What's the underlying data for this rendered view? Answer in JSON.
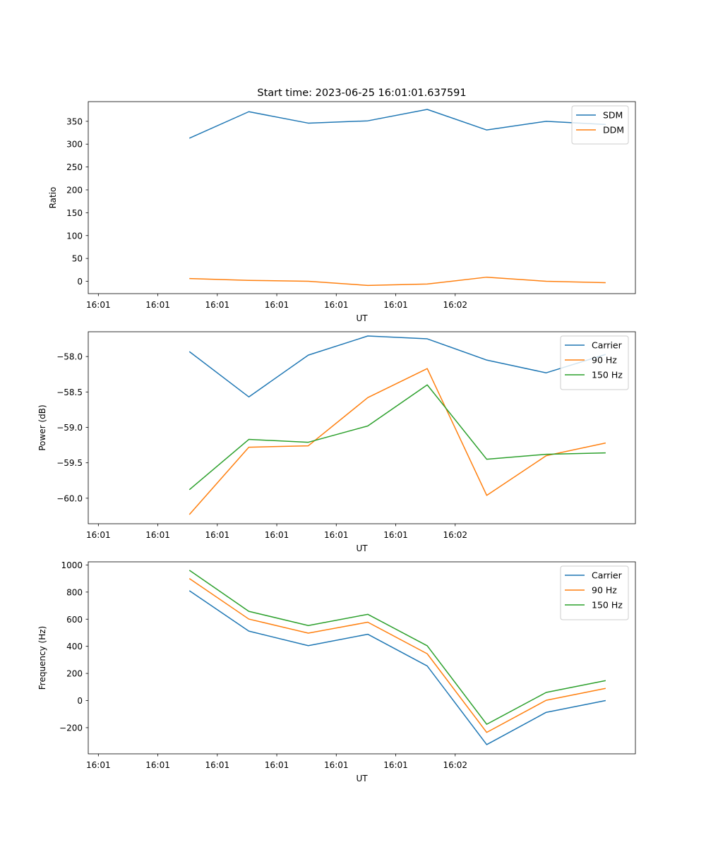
{
  "figure": {
    "title": "Start time: 2023-06-25 16:01:01.637591"
  },
  "chart_data": [
    {
      "type": "line",
      "title": "Start time: 2023-06-25 16:01:01.637591",
      "xlabel": "UT",
      "ylabel": "Ratio",
      "x_tick_labels": [
        "16:01",
        "16:01",
        "16:01",
        "16:01",
        "16:01",
        "16:01",
        "16:02"
      ],
      "xlim": [
        -0.8,
        8.4
      ],
      "x": [
        0.9,
        1.9,
        2.9,
        3.9,
        4.9,
        5.9,
        6.9,
        7.9
      ],
      "y_ticks": [
        0,
        50,
        100,
        150,
        200,
        250,
        300,
        350
      ],
      "ylim": [
        -27,
        393
      ],
      "legend_position": "top-right",
      "grid": false,
      "series": [
        {
          "name": "SDM",
          "color": "#1f77b4",
          "values": [
            313,
            371,
            346,
            351,
            376,
            331,
            350,
            343
          ]
        },
        {
          "name": "DDM",
          "color": "#ff7f0e",
          "values": [
            6,
            2,
            0,
            -9,
            -6,
            9,
            0,
            -3
          ]
        }
      ]
    },
    {
      "type": "line",
      "title": "",
      "xlabel": "UT",
      "ylabel": "Power (dB)",
      "x_tick_labels": [
        "16:01",
        "16:01",
        "16:01",
        "16:01",
        "16:01",
        "16:01",
        "16:02"
      ],
      "xlim": [
        -0.8,
        8.4
      ],
      "x": [
        0.9,
        1.9,
        2.9,
        3.9,
        4.9,
        5.9,
        6.9,
        7.9
      ],
      "y_ticks": [
        -58.0,
        -58.5,
        -59.0,
        -59.5,
        -60.0
      ],
      "y_tick_labels": [
        "−58.0",
        "−58.5",
        "−59.0",
        "−59.5",
        "−60.0"
      ],
      "ylim": [
        -60.36,
        -57.65
      ],
      "legend_position": "top-right",
      "grid": false,
      "series": [
        {
          "name": "Carrier",
          "color": "#1f77b4",
          "values": [
            -57.93,
            -58.57,
            -57.98,
            -57.71,
            -57.75,
            -58.05,
            -58.23,
            -57.97
          ]
        },
        {
          "name": "90 Hz",
          "color": "#ff7f0e",
          "values": [
            -60.23,
            -59.28,
            -59.26,
            -58.58,
            -58.17,
            -59.96,
            -59.4,
            -59.22
          ]
        },
        {
          "name": "150 Hz",
          "color": "#2ca02c",
          "values": [
            -59.88,
            -59.17,
            -59.21,
            -58.98,
            -58.4,
            -59.45,
            -59.38,
            -59.36
          ]
        }
      ]
    },
    {
      "type": "line",
      "title": "",
      "xlabel": "UT",
      "ylabel": "Frequency (Hz)",
      "x_tick_labels": [
        "16:01",
        "16:01",
        "16:01",
        "16:01",
        "16:01",
        "16:01",
        "16:02"
      ],
      "xlim": [
        -0.8,
        8.4
      ],
      "x": [
        0.9,
        1.9,
        2.9,
        3.9,
        4.9,
        5.9,
        6.9,
        7.9
      ],
      "y_ticks": [
        -200,
        0,
        200,
        400,
        600,
        800,
        1000
      ],
      "y_tick_labels": [
        "−200",
        "0",
        "200",
        "400",
        "600",
        "800",
        "1000"
      ],
      "ylim": [
        -393,
        1023
      ],
      "legend_position": "top-right",
      "grid": false,
      "series": [
        {
          "name": "Carrier",
          "color": "#1f77b4",
          "values": [
            810,
            512,
            405,
            489,
            255,
            -325,
            -87,
            0
          ]
        },
        {
          "name": "90 Hz",
          "color": "#ff7f0e",
          "values": [
            900,
            601,
            497,
            578,
            345,
            -235,
            2,
            90
          ]
        },
        {
          "name": "150 Hz",
          "color": "#2ca02c",
          "values": [
            961,
            658,
            553,
            636,
            404,
            -175,
            60,
            147
          ]
        }
      ]
    }
  ]
}
